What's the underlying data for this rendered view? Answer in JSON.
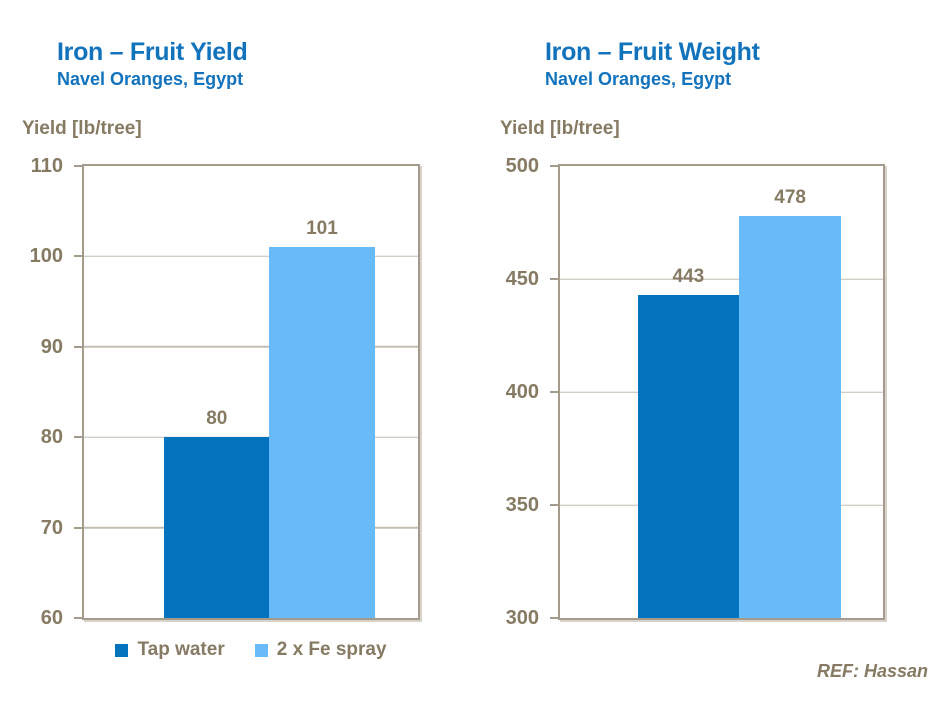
{
  "page": {
    "background": "#ffffff",
    "ref_note": "REF: Hassan"
  },
  "colors": {
    "title_blue": "#1273BD",
    "text_taupe": "#867A63",
    "axis_line": "#A49B8C",
    "gridline": "#C4BDB2",
    "plot_shadow": "#D8D3CA",
    "series1": "#0473BD",
    "series2": "#68BBF8"
  },
  "legend": {
    "items": [
      {
        "label": "Tap water",
        "color": "#0473BD"
      },
      {
        "label": "2 x Fe spray",
        "color": "#68BBF8"
      }
    ]
  },
  "chart_data": [
    {
      "type": "bar",
      "title": "Iron – Fruit Yield",
      "subtitle": "Navel Oranges, Egypt",
      "ylabel": "Yield [lb/tree]",
      "categories": [
        "Tap water",
        "2 x Fe spray"
      ],
      "values": [
        80,
        101
      ],
      "ylim": [
        60,
        110
      ],
      "yticks": [
        60,
        70,
        80,
        90,
        100,
        110
      ],
      "grid": true,
      "legend_position": "bottom"
    },
    {
      "type": "bar",
      "title": "Iron – Fruit Weight",
      "subtitle": "Navel Oranges, Egypt",
      "ylabel": "Yield [lb/tree]",
      "categories": [
        "Tap water",
        "2 x Fe spray"
      ],
      "values": [
        443,
        478
      ],
      "ylim": [
        300,
        500
      ],
      "yticks": [
        300,
        350,
        400,
        450,
        500
      ],
      "grid": true,
      "legend_position": "none"
    }
  ]
}
